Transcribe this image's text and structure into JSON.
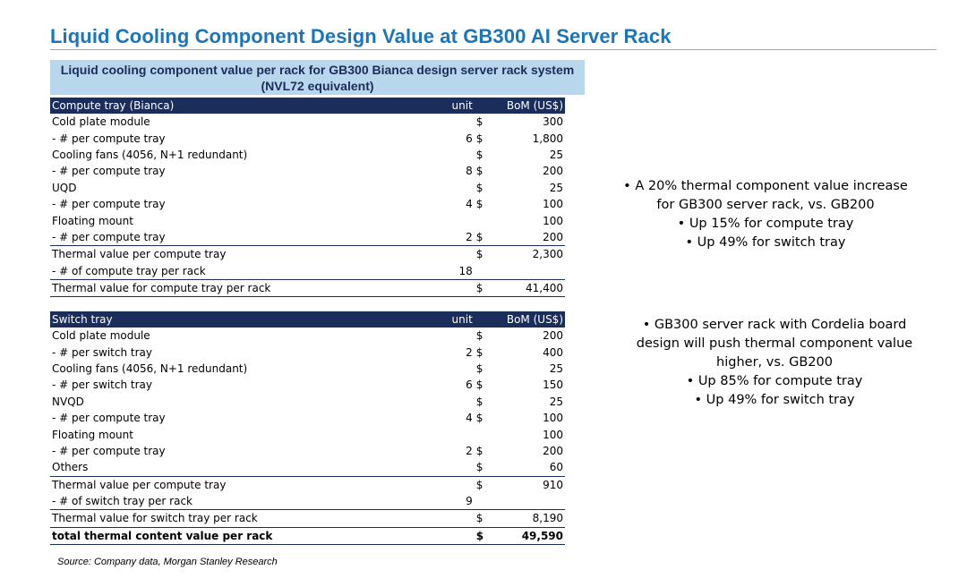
{
  "title": "Liquid Cooling Component Design Value at GB300 AI Server Rack",
  "caption_line1": "Liquid cooling component value per rack for GB300 Bianca design server rack system",
  "caption_line2": "(NVL72 equivalent)",
  "compute": {
    "header": {
      "label": "Compute tray (Bianca)",
      "unit": "unit",
      "bom": "BoM (US$)"
    },
    "rows": [
      {
        "label": "Cold plate module",
        "unit": "",
        "cur": "$",
        "val": "300"
      },
      {
        "label": "- # per compute tray",
        "unit": "6",
        "cur": "$",
        "val": "1,800"
      },
      {
        "label": "Cooling fans (4056, N+1 redundant)",
        "unit": "",
        "cur": "$",
        "val": "25"
      },
      {
        "label": "- # per compute tray",
        "unit": "8",
        "cur": "$",
        "val": "200"
      },
      {
        "label": "UQD",
        "unit": "",
        "cur": "$",
        "val": "25"
      },
      {
        "label": "- # per compute tray",
        "unit": "4",
        "cur": "$",
        "val": "100"
      },
      {
        "label": "Floating mount",
        "unit": "",
        "cur": "",
        "val": "100"
      },
      {
        "label": "- # per compute tray",
        "unit": "2",
        "cur": "$",
        "val": "200"
      },
      {
        "label": "Thermal value per compute tray",
        "unit": "",
        "cur": "$",
        "val": "2,300"
      },
      {
        "label": "- # of compute tray per rack",
        "unit": "18",
        "cur": "",
        "val": ""
      },
      {
        "label": "Thermal value for compute tray  per rack",
        "unit": "",
        "cur": "$",
        "val": "41,400"
      }
    ]
  },
  "switch": {
    "header": {
      "label": "Switch tray",
      "unit": "unit",
      "bom": "BoM (US$)"
    },
    "rows": [
      {
        "label": "Cold plate module",
        "unit": "",
        "cur": "$",
        "val": "200"
      },
      {
        "label": "- # per switch tray",
        "unit": "2",
        "cur": "$",
        "val": "400"
      },
      {
        "label": "Cooling fans (4056, N+1 redundant)",
        "unit": "",
        "cur": "$",
        "val": "25"
      },
      {
        "label": "- # per switch tray",
        "unit": "6",
        "cur": "$",
        "val": "150"
      },
      {
        "label": "NVQD",
        "unit": "",
        "cur": "$",
        "val": "25"
      },
      {
        "label": "- # per compute tray",
        "unit": "4",
        "cur": "$",
        "val": "100"
      },
      {
        "label": "Floating mount",
        "unit": "",
        "cur": "",
        "val": "100"
      },
      {
        "label": "- # per compute tray",
        "unit": "2",
        "cur": "$",
        "val": "200"
      },
      {
        "label": "Others",
        "unit": "",
        "cur": "$",
        "val": "60"
      },
      {
        "label": "Thermal value per compute tray",
        "unit": "",
        "cur": "$",
        "val": "910"
      },
      {
        "label": "- # of switch tray per rack",
        "unit": "9",
        "cur": "",
        "val": ""
      },
      {
        "label": "Thermal value for switch tray per rack",
        "unit": "",
        "cur": "$",
        "val": "8,190"
      },
      {
        "label": "total thermal content value per rack",
        "unit": "",
        "cur": "$",
        "val": "49,590"
      }
    ]
  },
  "source": "Source: Company data, Morgan Stanley Research",
  "bullets1": {
    "main1": "•  A 20% thermal component value increase",
    "main2": "for GB300 server rack, vs. GB200",
    "sub1": "•  Up 15% for compute tray",
    "sub2": "•  Up 49% for switch tray"
  },
  "bullets2": {
    "main1": "•  GB300 server rack with Cordelia board",
    "main2": "design will push thermal component value",
    "main3": "higher, vs. GB200",
    "sub1": "•  Up 85% for compute tray",
    "sub2": "•  Up 49% for switch tray"
  }
}
